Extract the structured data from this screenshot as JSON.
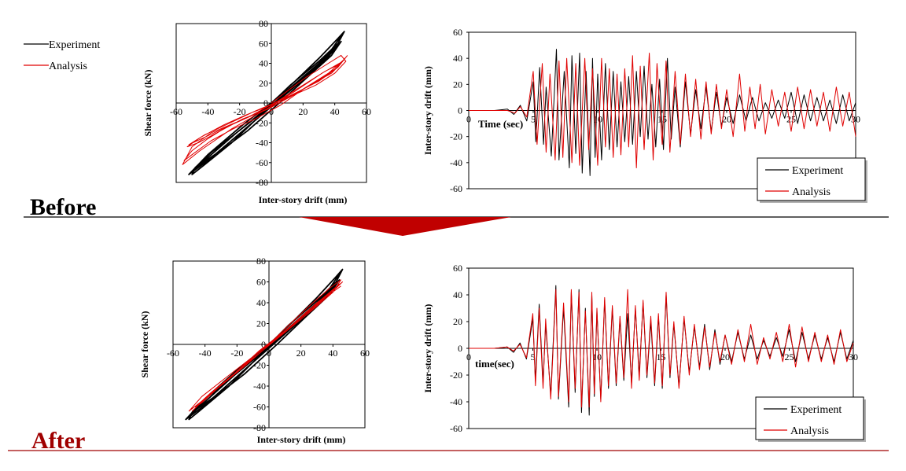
{
  "page": {
    "before_label": "Before",
    "after_label": "After",
    "colors": {
      "experiment": "#000000",
      "analysis": "#e00000",
      "after_label": "#a00000",
      "arrow": "#c00000",
      "separator_after": "#a00000"
    }
  },
  "chart_data": [
    {
      "id": "hyst_before",
      "type": "scatter",
      "xlabel": "Inter-story drift (mm)",
      "ylabel": "Shear force (kN)",
      "xlim": [
        -60,
        60
      ],
      "ylim": [
        -80,
        80
      ],
      "xticks": [
        "-60",
        "-40",
        "-20",
        "0",
        "20",
        "40",
        "60"
      ],
      "yticks": [
        "-80",
        "-60",
        "-40",
        "-20",
        "0",
        "20",
        "40",
        "60",
        "80"
      ],
      "series": [
        {
          "name": "Experiment",
          "color": "#000000",
          "x": [
            0,
            15,
            30,
            42,
            46,
            42,
            30,
            12,
            -5,
            -22,
            -38,
            -48,
            -50,
            -42,
            -25,
            -8,
            10,
            28,
            40,
            44,
            38,
            22,
            5,
            -15,
            -32,
            -45,
            -48,
            -40,
            -22,
            -2,
            18,
            35,
            43,
            30,
            8,
            -18,
            -40,
            -52,
            -40,
            -15,
            10,
            32,
            45
          ],
          "y": [
            0,
            22,
            45,
            65,
            72,
            60,
            42,
            18,
            -8,
            -30,
            -50,
            -65,
            -72,
            -62,
            -40,
            -14,
            10,
            35,
            55,
            62,
            48,
            25,
            0,
            -28,
            -48,
            -62,
            -66,
            -55,
            -30,
            -5,
            22,
            45,
            60,
            40,
            10,
            -22,
            -52,
            -72,
            -58,
            -24,
            10,
            40,
            70
          ]
        },
        {
          "name": "Analysis",
          "color": "#e00000",
          "x": [
            0,
            10,
            22,
            34,
            44,
            47,
            40,
            28,
            14,
            0,
            -14,
            -28,
            -40,
            -50,
            -55,
            -50,
            -38,
            -24,
            -10,
            6,
            22,
            36,
            46,
            42,
            30,
            15,
            0,
            -16,
            -30,
            -44,
            -53,
            -46,
            -32,
            -18,
            -2,
            14,
            30,
            42,
            47,
            40,
            25,
            8,
            -10,
            -26,
            -42,
            -52,
            -44,
            -28,
            -12,
            4,
            20,
            34,
            44,
            38,
            20,
            0,
            -20,
            -38,
            -50,
            -56,
            -45,
            -25,
            -5,
            15,
            32,
            45,
            48
          ],
          "y": [
            0,
            12,
            26,
            38,
            48,
            42,
            30,
            18,
            8,
            -4,
            -14,
            -24,
            -36,
            -48,
            -58,
            -52,
            -38,
            -26,
            -16,
            -2,
            16,
            30,
            44,
            36,
            22,
            10,
            -2,
            -12,
            -22,
            -34,
            -44,
            -40,
            -28,
            -16,
            -6,
            8,
            24,
            36,
            46,
            34,
            18,
            4,
            -8,
            -20,
            -32,
            -42,
            -36,
            -24,
            -12,
            2,
            18,
            32,
            40,
            30,
            14,
            -4,
            -18,
            -30,
            -44,
            -62,
            -48,
            -26,
            -8,
            12,
            30,
            42,
            48
          ]
        }
      ]
    },
    {
      "id": "time_before",
      "type": "line",
      "xlabel": "Time (sec)",
      "ylabel": "Inter-story drift (mm)",
      "xlim": [
        0,
        30
      ],
      "ylim": [
        -60,
        60
      ],
      "xticks": [
        "0",
        "5",
        "10",
        "15",
        "20",
        "25",
        "30"
      ],
      "yticks": [
        "-60",
        "-40",
        "-20",
        "0",
        "20",
        "40",
        "60"
      ],
      "legend_position": "bottom-right",
      "series": [
        {
          "name": "Experiment",
          "color": "#000000",
          "x": [
            0,
            2,
            3,
            3.5,
            4,
            4.5,
            5,
            5.2,
            5.5,
            5.8,
            6,
            6.4,
            6.8,
            7,
            7.4,
            7.8,
            8,
            8.3,
            8.6,
            8.8,
            9.1,
            9.4,
            9.6,
            9.8,
            10,
            10.3,
            10.6,
            10.9,
            11.2,
            11.5,
            11.8,
            12.1,
            12.4,
            12.7,
            13,
            13.3,
            13.6,
            13.9,
            14.2,
            14.5,
            14.8,
            15.1,
            15.4,
            15.7,
            16,
            16.4,
            16.8,
            17.2,
            17.6,
            18,
            18.4,
            18.8,
            19.2,
            19.6,
            20,
            20.5,
            21,
            21.5,
            22,
            22.5,
            23,
            23.5,
            24,
            24.5,
            25,
            25.5,
            26,
            26.5,
            27,
            27.5,
            28,
            28.5,
            29,
            29.5,
            30
          ],
          "y": [
            0,
            0,
            1,
            -3,
            4,
            -8,
            22,
            -24,
            33,
            -26,
            18,
            -35,
            47,
            -38,
            30,
            -44,
            42,
            -33,
            44,
            -48,
            30,
            -50,
            40,
            -36,
            28,
            -38,
            36,
            -30,
            30,
            -28,
            22,
            -24,
            26,
            -26,
            30,
            -20,
            34,
            -22,
            20,
            -28,
            24,
            -30,
            40,
            -22,
            18,
            -28,
            22,
            -18,
            16,
            -14,
            18,
            -16,
            14,
            -12,
            10,
            -10,
            12,
            -8,
            10,
            -8,
            6,
            -6,
            8,
            -6,
            14,
            -10,
            12,
            -8,
            10,
            -8,
            8,
            -10,
            12,
            -8,
            6
          ]
        },
        {
          "name": "Analysis",
          "color": "#e00000",
          "x": [
            0,
            3,
            3.6,
            4,
            4.5,
            5,
            5.3,
            5.7,
            6,
            6.3,
            6.7,
            7,
            7.3,
            7.6,
            8,
            8.3,
            8.6,
            9,
            9.3,
            9.6,
            10,
            10.3,
            10.6,
            10.9,
            11.2,
            11.5,
            11.8,
            12.1,
            12.4,
            12.7,
            13,
            13.3,
            13.6,
            14,
            14.3,
            14.6,
            15,
            15.3,
            15.6,
            16,
            16.4,
            16.8,
            17.2,
            17.6,
            18,
            18.4,
            18.8,
            19.2,
            19.6,
            20,
            20.5,
            21,
            21.4,
            21.8,
            22.2,
            22.6,
            23,
            23.5,
            24,
            24.5,
            25,
            25.5,
            26,
            26.5,
            27,
            27.5,
            28,
            28.5,
            29,
            29.5,
            30
          ],
          "y": [
            0,
            0,
            -2,
            3,
            -5,
            30,
            -26,
            36,
            -32,
            28,
            -38,
            38,
            -36,
            40,
            -40,
            36,
            -42,
            40,
            -30,
            32,
            -42,
            40,
            -28,
            32,
            -36,
            28,
            -34,
            32,
            -28,
            42,
            -44,
            34,
            -30,
            44,
            -38,
            36,
            -26,
            38,
            -32,
            30,
            -26,
            28,
            -20,
            24,
            -22,
            22,
            -18,
            20,
            -14,
            16,
            -20,
            28,
            -16,
            18,
            -14,
            20,
            -18,
            16,
            -12,
            14,
            -16,
            18,
            -14,
            16,
            -12,
            14,
            -16,
            18,
            -12,
            14,
            -20
          ]
        }
      ]
    },
    {
      "id": "hyst_after",
      "type": "scatter",
      "xlabel": "Inter-story drift (mm)",
      "ylabel": "Shear force (kN)",
      "xlim": [
        -60,
        60
      ],
      "ylim": [
        -80,
        80
      ],
      "xticks": [
        "-60",
        "-40",
        "-20",
        "0",
        "20",
        "40",
        "60"
      ],
      "yticks": [
        "-80",
        "-60",
        "-40",
        "-20",
        "0",
        "20",
        "40",
        "60",
        "80"
      ],
      "series": [
        {
          "name": "Experiment",
          "color": "#000000",
          "x": [
            0,
            15,
            30,
            42,
            46,
            42,
            30,
            12,
            -5,
            -22,
            -38,
            -48,
            -50,
            -42,
            -25,
            -8,
            10,
            28,
            40,
            44,
            38,
            22,
            5,
            -15,
            -32,
            -45,
            -48,
            -40,
            -22,
            -2,
            18,
            35,
            43,
            30,
            8,
            -18,
            -40,
            -52,
            -40,
            -15,
            10,
            32,
            45
          ],
          "y": [
            0,
            22,
            45,
            65,
            72,
            60,
            42,
            18,
            -8,
            -30,
            -50,
            -65,
            -72,
            -62,
            -40,
            -14,
            10,
            35,
            55,
            62,
            48,
            25,
            0,
            -28,
            -48,
            -62,
            -66,
            -55,
            -30,
            -5,
            22,
            45,
            60,
            40,
            10,
            -22,
            -52,
            -72,
            -58,
            -24,
            10,
            40,
            70
          ]
        },
        {
          "name": "Analysis",
          "color": "#e00000",
          "x": [
            0,
            12,
            26,
            38,
            45,
            40,
            28,
            12,
            -4,
            -20,
            -34,
            -44,
            -48,
            -40,
            -26,
            -10,
            8,
            24,
            38,
            44,
            36,
            20,
            2,
            -16,
            -32,
            -42,
            -46,
            -36,
            -20,
            -4,
            14,
            30,
            42,
            46,
            34,
            16,
            -6,
            -26,
            -40,
            -50,
            -42,
            -22,
            0,
            20,
            36,
            45
          ],
          "y": [
            0,
            18,
            38,
            54,
            62,
            50,
            34,
            14,
            -6,
            -26,
            -44,
            -58,
            -64,
            -52,
            -34,
            -12,
            10,
            32,
            50,
            58,
            46,
            24,
            2,
            -22,
            -42,
            -56,
            -60,
            -46,
            -26,
            -4,
            18,
            40,
            54,
            60,
            44,
            20,
            -6,
            -34,
            -52,
            -64,
            -50,
            -26,
            0,
            26,
            46,
            56
          ]
        }
      ]
    },
    {
      "id": "time_after",
      "type": "line",
      "xlabel": "time(sec)",
      "ylabel": "Inter-story drift (mm)",
      "xlim": [
        0,
        30
      ],
      "ylim": [
        -60,
        60
      ],
      "xticks": [
        "0",
        "5",
        "10",
        "15",
        "20",
        "25",
        "30"
      ],
      "yticks": [
        "-60",
        "-40",
        "-20",
        "0",
        "20",
        "40",
        "60"
      ],
      "legend_position": "bottom-right",
      "series": [
        {
          "name": "Experiment",
          "color": "#000000",
          "x": [
            0,
            2,
            3,
            3.5,
            4,
            4.5,
            5,
            5.2,
            5.5,
            5.8,
            6,
            6.4,
            6.8,
            7,
            7.4,
            7.8,
            8,
            8.3,
            8.6,
            8.8,
            9.1,
            9.4,
            9.6,
            9.8,
            10,
            10.3,
            10.6,
            10.9,
            11.2,
            11.5,
            11.8,
            12.1,
            12.4,
            12.7,
            13,
            13.3,
            13.6,
            13.9,
            14.2,
            14.5,
            14.8,
            15.1,
            15.4,
            15.7,
            16,
            16.4,
            16.8,
            17.2,
            17.6,
            18,
            18.4,
            18.8,
            19.2,
            19.6,
            20,
            20.5,
            21,
            21.5,
            22,
            22.5,
            23,
            23.5,
            24,
            24.5,
            25,
            25.5,
            26,
            26.5,
            27,
            27.5,
            28,
            28.5,
            29,
            29.5,
            30
          ],
          "y": [
            0,
            0,
            1,
            -3,
            4,
            -8,
            22,
            -24,
            33,
            -26,
            18,
            -35,
            47,
            -38,
            30,
            -44,
            42,
            -33,
            44,
            -48,
            30,
            -50,
            40,
            -36,
            28,
            -38,
            36,
            -30,
            30,
            -28,
            22,
            -24,
            26,
            -26,
            30,
            -20,
            34,
            -22,
            20,
            -28,
            24,
            -30,
            40,
            -22,
            18,
            -28,
            22,
            -18,
            16,
            -14,
            18,
            -16,
            14,
            -12,
            10,
            -10,
            12,
            -8,
            10,
            -8,
            6,
            -6,
            8,
            -6,
            14,
            -10,
            12,
            -8,
            10,
            -8,
            8,
            -10,
            12,
            -8,
            6
          ]
        },
        {
          "name": "Analysis",
          "color": "#e00000",
          "x": [
            0,
            2,
            3,
            3.5,
            4,
            4.5,
            5,
            5.2,
            5.5,
            5.8,
            6,
            6.4,
            6.8,
            7,
            7.4,
            7.8,
            8,
            8.3,
            8.6,
            8.8,
            9.1,
            9.4,
            9.6,
            9.8,
            10,
            10.3,
            10.6,
            10.9,
            11.2,
            11.5,
            11.8,
            12.1,
            12.4,
            12.7,
            13,
            13.3,
            13.6,
            13.9,
            14.2,
            14.5,
            14.8,
            15.1,
            15.4,
            15.7,
            16,
            16.4,
            16.8,
            17.2,
            17.6,
            18,
            18.4,
            18.8,
            19.2,
            19.6,
            20,
            20.5,
            21,
            21.5,
            22,
            22.5,
            23,
            23.5,
            24,
            24.5,
            25,
            25.5,
            26,
            26.5,
            27,
            27.5,
            28,
            28.5,
            29,
            29.5,
            30
          ],
          "y": [
            0,
            0,
            1,
            -2,
            3,
            -7,
            26,
            -28,
            30,
            -30,
            22,
            -38,
            44,
            -36,
            34,
            -40,
            44,
            -30,
            42,
            -44,
            28,
            -44,
            42,
            -34,
            30,
            -40,
            38,
            -28,
            32,
            -26,
            24,
            -22,
            44,
            -30,
            32,
            -24,
            36,
            -20,
            24,
            -26,
            26,
            -28,
            42,
            -20,
            20,
            -30,
            24,
            -20,
            18,
            -16,
            16,
            -14,
            12,
            -10,
            10,
            -12,
            14,
            -10,
            18,
            -12,
            8,
            -8,
            12,
            -10,
            18,
            -14,
            16,
            -10,
            12,
            -10,
            10,
            -12,
            14,
            -10,
            4
          ]
        }
      ]
    }
  ]
}
